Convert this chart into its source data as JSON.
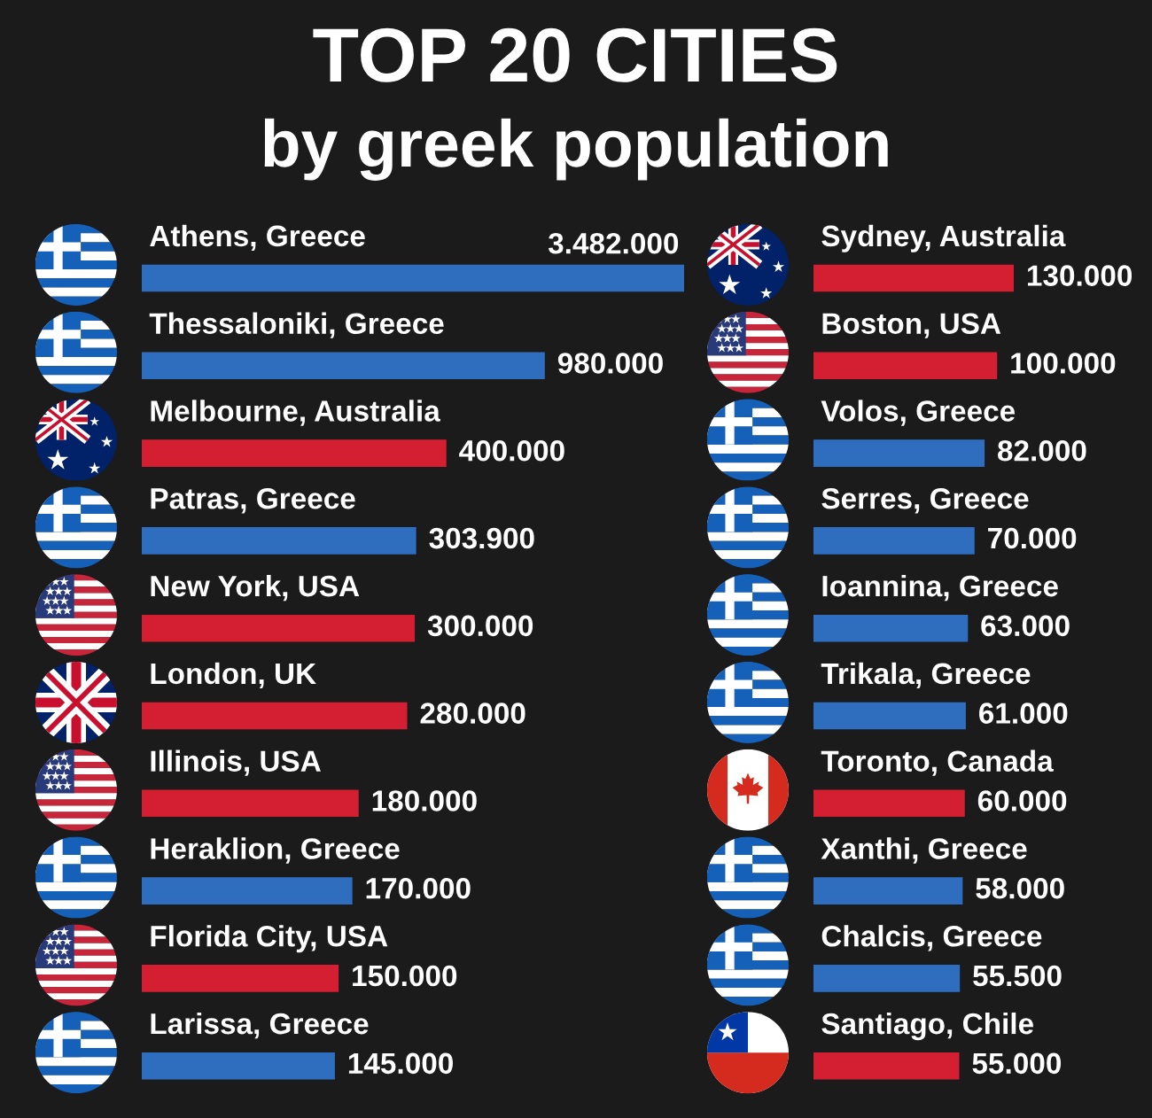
{
  "chart_data": [
    {
      "type": "bar",
      "orientation": "horizontal",
      "title": "TOP 20 CITIES",
      "subtitle": "by greek population",
      "categories": [
        "Athens, Greece",
        "Thessaloniki, Greece",
        "Melbourne, Australia",
        "Patras, Greece",
        "New York, USA",
        "London, UK",
        "Illinois, USA",
        "Heraklion, Greece",
        "Florida City, USA",
        "Larissa, Greece"
      ],
      "values": [
        3482000,
        980000,
        400000,
        303900,
        300000,
        280000,
        180000,
        170000,
        150000,
        145000
      ],
      "colors": [
        "#2f6ebf",
        "#2f6ebf",
        "#d41f33",
        "#2f6ebf",
        "#d41f33",
        "#d41f33",
        "#d41f33",
        "#2f6ebf",
        "#d41f33",
        "#2f6ebf"
      ],
      "value_labels": [
        "3.482.000",
        "980.000",
        "400.000",
        "303.900",
        "300.000",
        "280.000",
        "180.000",
        "170.000",
        "150.000",
        "145.000"
      ],
      "log": "x",
      "xlim": [
        25000,
        3482000
      ],
      "tick_labels": "y"
    },
    {
      "type": "bar",
      "orientation": "horizontal",
      "categories": [
        "Sydney, Australia",
        "Boston, USA",
        "Volos, Greece",
        "Serres, Greece",
        "Ioannina, Greece",
        "Trikala, Greece",
        "Toronto, Canada",
        "Xanthi, Greece",
        "Chalcis, Greece",
        "Santiago, Chile"
      ],
      "values": [
        130000,
        100000,
        82000,
        70000,
        63000,
        61000,
        60000,
        58000,
        55500,
        55000
      ],
      "colors": [
        "#d41f33",
        "#d41f33",
        "#2f6ebf",
        "#2f6ebf",
        "#2f6ebf",
        "#2f6ebf",
        "#d41f33",
        "#2f6ebf",
        "#2f6ebf",
        "#d41f33"
      ],
      "value_labels": [
        "130.000",
        "100.000",
        "82.000",
        "70.000",
        "63.000",
        "61.000",
        "60.000",
        "58.000",
        "55.500",
        "55.000"
      ],
      "log": "x",
      "xlim": [
        5500,
        130000
      ],
      "tick_labels": "y"
    }
  ]
}
